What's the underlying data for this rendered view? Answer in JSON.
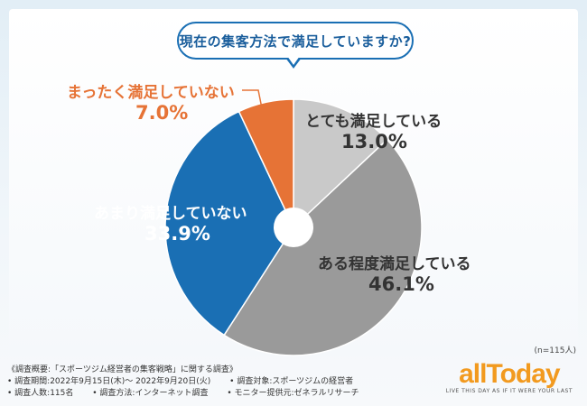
{
  "title": "現在の集客方法で満足していますか?",
  "chart_data": {
    "type": "pie",
    "title": "現在の集客方法で満足していますか?",
    "categories": [
      "とても満足している",
      "ある程度満足している",
      "あまり満足していない",
      "まったく満足していない"
    ],
    "values": [
      13.0,
      46.1,
      33.9,
      7.0
    ],
    "value_labels": [
      "13.0%",
      "46.1%",
      "33.9%",
      "7.0%"
    ],
    "colors": [
      "#c9c9c9",
      "#9a9a9a",
      "#1a6fb4",
      "#e67336"
    ],
    "n_note": "(n=115人)"
  },
  "footer": {
    "survey_overview": "《調査概要:「スポーツジム経営者の集客戦略」に関する調査》",
    "period": "• 調査期間:2022年9月15日(木)～ 2022年9月20日(火)",
    "target": "• 調査対象:スポーツジムの経営者",
    "count": "• 調査人数:115名",
    "method": "• 調査方法:インターネット調査",
    "provider": "• モニター提供元:ゼネラルリサーチ"
  },
  "logo": {
    "word": "allToday",
    "tagline": "LIVE THIS DAY AS IF IT WERE YOUR LAST"
  }
}
